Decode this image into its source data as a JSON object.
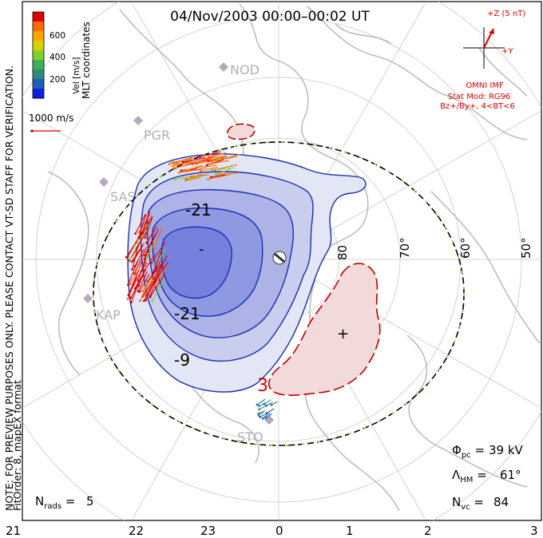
{
  "title": "04/Nov/2003 00:00–00:02 UT",
  "side_notes": {
    "line1": "NOTE: FOR PREVIEW PURPOSES ONLY. PLEASE CONTACT VT-SD STAFF FOR VERIFICATION.",
    "line2": "FitOrder: 8, mapEX format"
  },
  "colorbar": {
    "label": "Vel [m/s]",
    "coords_label": "MLT coordinates",
    "ticks": [
      "600",
      "400",
      "200"
    ],
    "colors": [
      "#e00000",
      "#ff6a00",
      "#ffa500",
      "#d8d000",
      "#7bd42a",
      "#3fae57",
      "#2f8a7a",
      "#1f5fb8",
      "#1020e0"
    ]
  },
  "vector_scale": "1000 m/s",
  "imf": {
    "bz_label": "+Z (5 nT)",
    "by_label": "+Y",
    "source": "OMNI IMF",
    "stat_mod": "Stat Mod: RG96",
    "bins": "Bz+/By+, 4<BT<6"
  },
  "stations": [
    "NOD",
    "PGR",
    "SAS",
    "KAP",
    "STO"
  ],
  "contour_labels": [
    "-21",
    "-21",
    "-9",
    "-",
    "3",
    "+"
  ],
  "lat_labels": [
    "80",
    "70°",
    "60°",
    "50°"
  ],
  "stats": {
    "phi_pc": "39 kV",
    "lambda_hm": "61°",
    "n_vc": "84",
    "n_rads": "5"
  },
  "mlt_ticks": [
    "21",
    "22",
    "23",
    "0",
    "1",
    "2",
    "3"
  ]
}
